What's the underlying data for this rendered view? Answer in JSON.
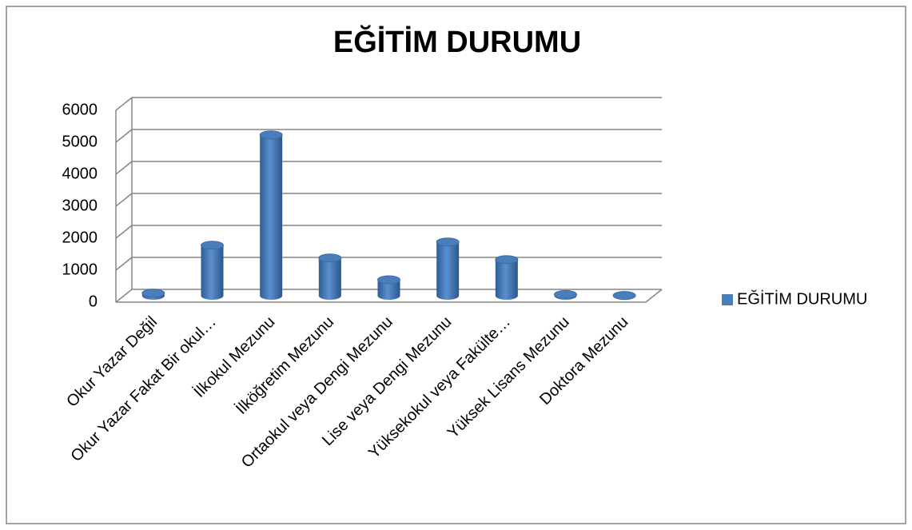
{
  "chart_data": {
    "type": "bar3d",
    "title": "EĞİTİM DURUMU",
    "categories": [
      "Okur Yazar Değil",
      "Okur Yazar Fakat Bir okul…",
      "İlkokul Mezunu",
      "İlköğretim Mezunu",
      "Ortaokul veya Dengi Mezunu",
      "Lise veya Dengi Mezunu",
      "Yüksekokul veya Fakülte…",
      "Yüksek Lisans Mezunu",
      "Doktora Mezunu"
    ],
    "series": [
      {
        "name": "EĞİTİM DURUMU",
        "color": "#4a7ebb",
        "values": [
          80,
          1580,
          5030,
          1180,
          500,
          1680,
          1130,
          40,
          10
        ]
      }
    ],
    "ylim": [
      0,
      6000
    ],
    "yticks": [
      0,
      1000,
      2000,
      3000,
      4000,
      5000,
      6000
    ],
    "grid": true,
    "legend": "right"
  }
}
